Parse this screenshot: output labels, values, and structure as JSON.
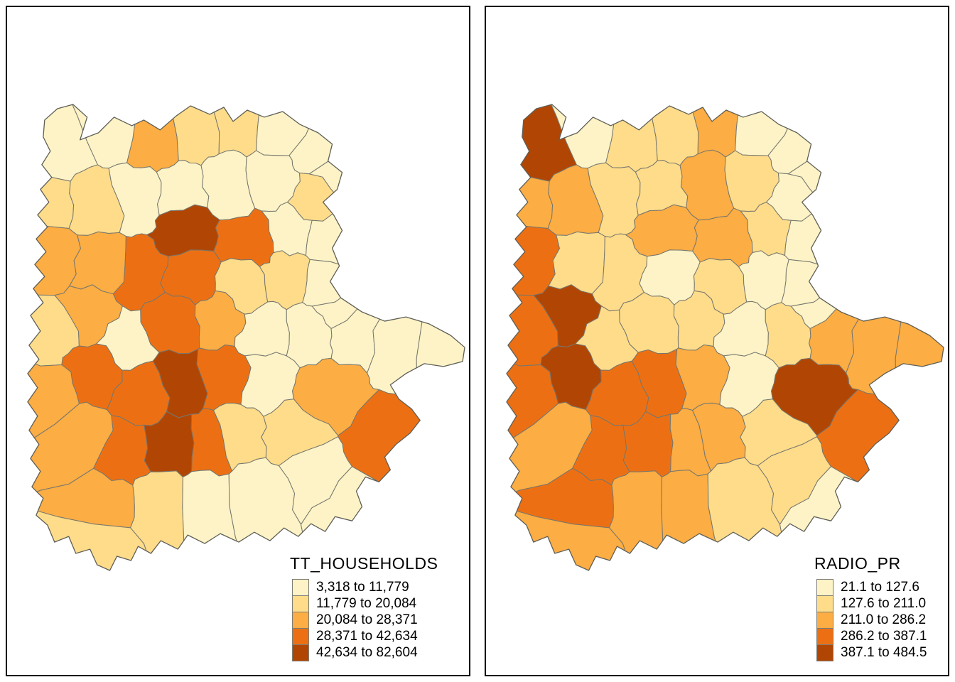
{
  "palette": {
    "classes": [
      "#fdf3c6",
      "#fedc8a",
      "#fcad43",
      "#ec7013",
      "#b14604"
    ],
    "district_border": "#76766e",
    "region_outline": "#5e5e56",
    "panel_border": "#000000",
    "background": "#ffffff"
  },
  "left_map": {
    "title": "TT_HOUSEHOLDS",
    "legend": [
      "3,318 to 11,779",
      "11,779 to 20,084",
      "20,084 to 28,371",
      "28,371 to 42,634",
      "42,634 to 82,604"
    ],
    "district_classes": [
      1,
      1,
      3,
      2,
      2,
      1,
      1,
      2,
      2,
      1,
      1,
      1,
      1,
      2,
      1,
      5,
      4,
      1,
      1,
      3,
      3,
      4,
      4,
      2,
      2,
      1,
      1,
      2,
      3,
      1,
      4,
      3,
      1,
      1,
      1,
      1,
      1,
      4,
      4,
      5,
      4,
      1,
      3,
      4,
      2,
      3,
      3,
      4,
      5,
      4,
      2,
      3,
      2,
      1,
      1,
      1,
      2,
      1
    ]
  },
  "right_map": {
    "title": "RADIO_PR",
    "legend": [
      "21.1 to 127.6",
      "127.6 to 211.0",
      "211.0 to 286.2",
      "286.2 to 387.1",
      "387.1 to 484.5"
    ],
    "district_classes": [
      5,
      1,
      2,
      2,
      3,
      1,
      1,
      3,
      3,
      2,
      2,
      3,
      2,
      1,
      1,
      3,
      3,
      2,
      1,
      4,
      2,
      2,
      1,
      2,
      1,
      1,
      1,
      4,
      5,
      2,
      2,
      2,
      1,
      2,
      3,
      3,
      3,
      5,
      4,
      4,
      3,
      1,
      5,
      4,
      2,
      4,
      3,
      4,
      4,
      3,
      3,
      4,
      3,
      3,
      2,
      2,
      3,
      1
    ]
  }
}
